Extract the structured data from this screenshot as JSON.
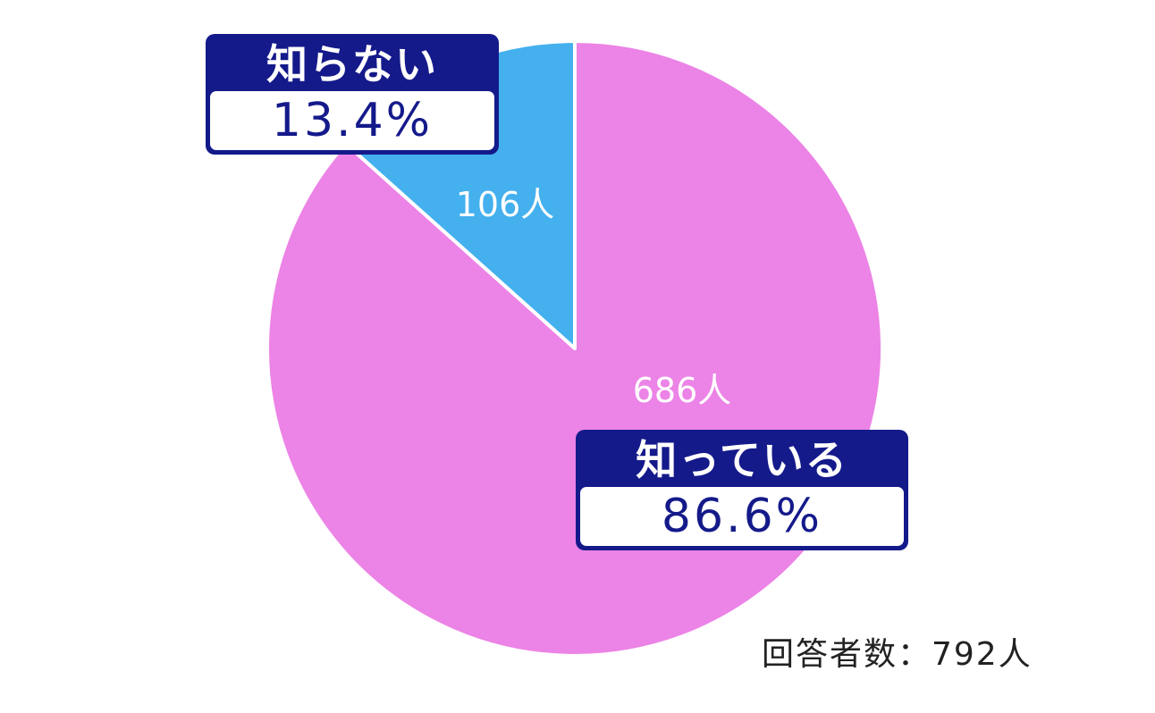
{
  "chart_data": {
    "type": "pie",
    "slices": [
      {
        "label": "知っている",
        "percent_label": "86.6%",
        "count_label": "686人",
        "value": 686,
        "color": "#ec83e6"
      },
      {
        "label": "知らない",
        "percent_label": "13.4%",
        "count_label": "106人",
        "value": 106,
        "color": "#44b0ee"
      }
    ],
    "total_label": "回答者数：792人",
    "start": "top, clockwise"
  },
  "colors": {
    "callout_bg": "#141a8a",
    "slice_border": "#ffffff"
  }
}
